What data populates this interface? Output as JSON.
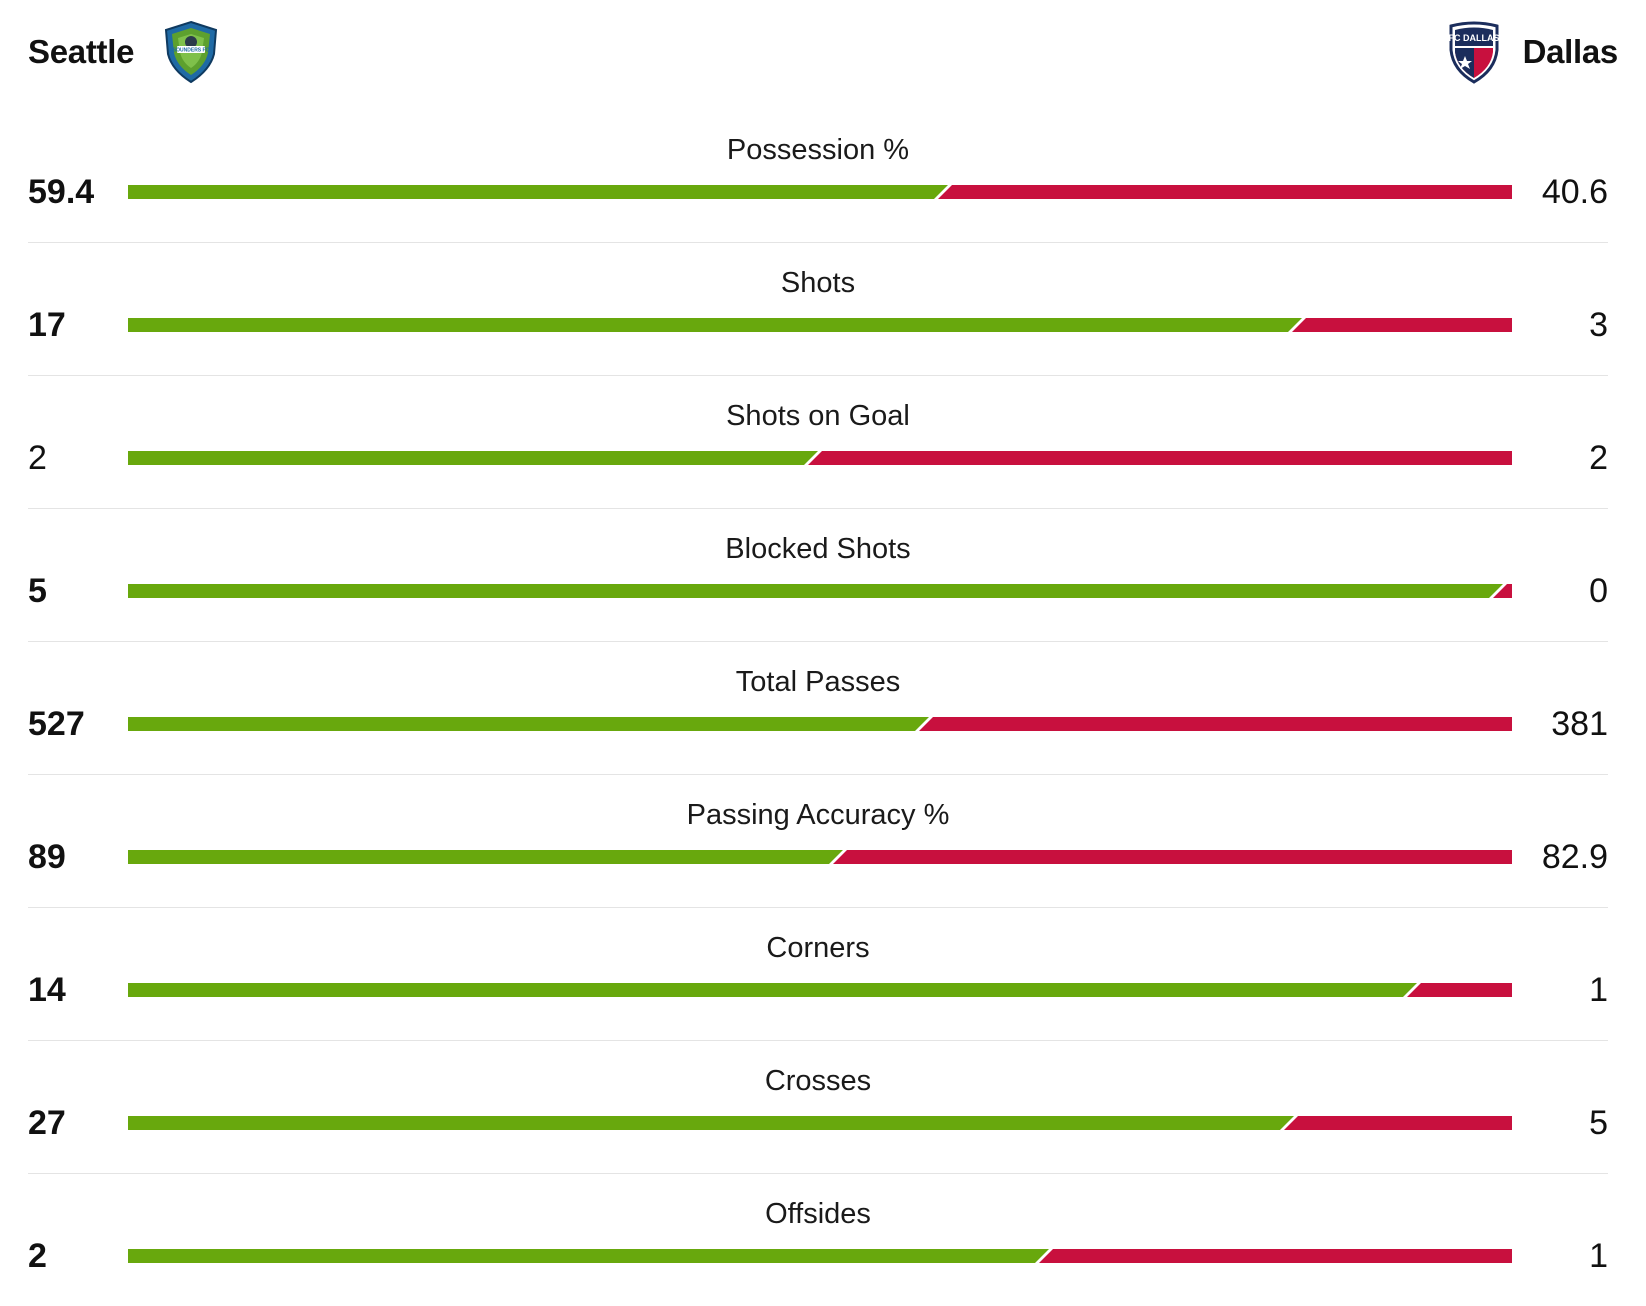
{
  "colors": {
    "home": "#68a80d",
    "away": "#c8103e"
  },
  "home": {
    "name": "Seattle",
    "logo_text": "SOUNDERS FC",
    "crest_icon": "sounders-crest-icon"
  },
  "away": {
    "name": "Dallas",
    "logo_text": "FC DALLAS",
    "crest_icon": "fc-dallas-crest-icon"
  },
  "stats": [
    {
      "label": "Possession %",
      "home": "59.4",
      "away": "40.6",
      "home_share": 0.594
    },
    {
      "label": "Shots",
      "home": "17",
      "away": "3",
      "home_share": 0.85
    },
    {
      "label": "Shots on Goal",
      "home": "2",
      "away": "2",
      "home_share": 0.5
    },
    {
      "label": "Blocked Shots",
      "home": "5",
      "away": "0",
      "home_share": 0.995
    },
    {
      "label": "Total Passes",
      "home": "527",
      "away": "381",
      "home_share": 0.58
    },
    {
      "label": "Passing Accuracy %",
      "home": "89",
      "away": "82.9",
      "home_share": 0.518
    },
    {
      "label": "Corners",
      "home": "14",
      "away": "1",
      "home_share": 0.933
    },
    {
      "label": "Crosses",
      "home": "27",
      "away": "5",
      "home_share": 0.844
    },
    {
      "label": "Offsides",
      "home": "2",
      "away": "1",
      "home_share": 0.667
    }
  ]
}
